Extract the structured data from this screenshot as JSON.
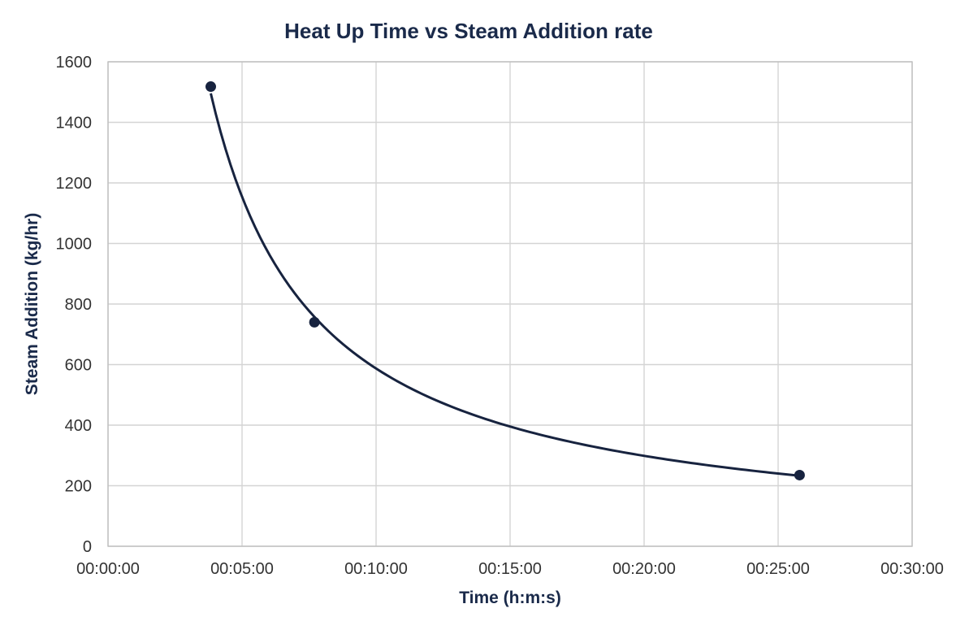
{
  "chart_data": {
    "type": "scatter",
    "title": "Heat Up Time vs Steam Addition rate",
    "xlabel": "Time (h:m:s)",
    "ylabel": "Steam Addition (kg/hr)",
    "x_format": "h:m:s",
    "xlim": [
      "00:00:00",
      "00:30:00"
    ],
    "ylim": [
      0,
      1600
    ],
    "x_ticks": [
      "00:00:00",
      "00:05:00",
      "00:10:00",
      "00:15:00",
      "00:20:00",
      "00:25:00",
      "00:30:00"
    ],
    "y_ticks": [
      0,
      200,
      400,
      600,
      800,
      1000,
      1200,
      1400,
      1600
    ],
    "grid": true,
    "legend": "none",
    "trendline": "power",
    "series": [
      {
        "points": [
          {
            "x": "00:03:50",
            "y": 1518
          },
          {
            "x": "00:07:42",
            "y": 740
          },
          {
            "x": "00:25:48",
            "y": 235
          }
        ]
      }
    ],
    "colors": {
      "series": "#17233f",
      "text": "#1a2a4a"
    }
  }
}
